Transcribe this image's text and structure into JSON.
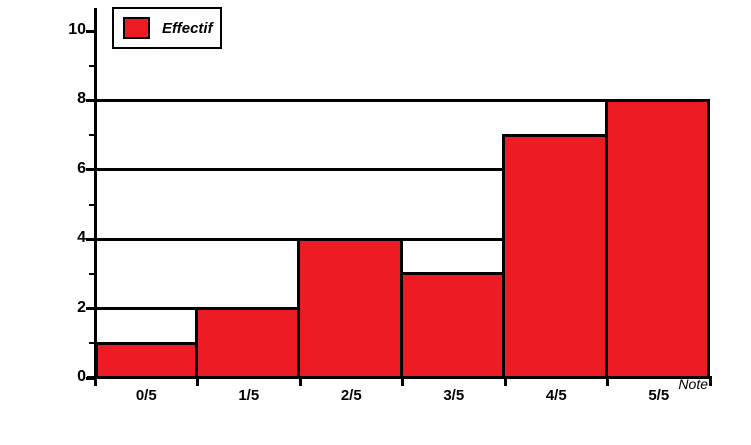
{
  "chart": {
    "colors": {
      "bar_fill": "#ED1C24",
      "bar_border": "#000000",
      "axis": "#000000",
      "background": "#FFFFFF"
    }
  },
  "chart_data": {
    "type": "bar",
    "categories": [
      "0/5",
      "1/5",
      "2/5",
      "3/5",
      "4/5",
      "5/5"
    ],
    "values": [
      1,
      2,
      4,
      3,
      7,
      8
    ],
    "title": "",
    "xlabel": "Note",
    "ylabel": "",
    "legend": [
      "Effectif"
    ],
    "legend_position": "top-left",
    "ylim": [
      0,
      10
    ],
    "y_major_ticks": [
      0,
      2,
      4,
      6,
      8,
      10
    ],
    "y_minor_ticks": [
      1,
      3,
      5,
      7,
      9
    ],
    "gridlines_at": [
      2,
      4,
      6,
      8
    ],
    "grid": true
  }
}
